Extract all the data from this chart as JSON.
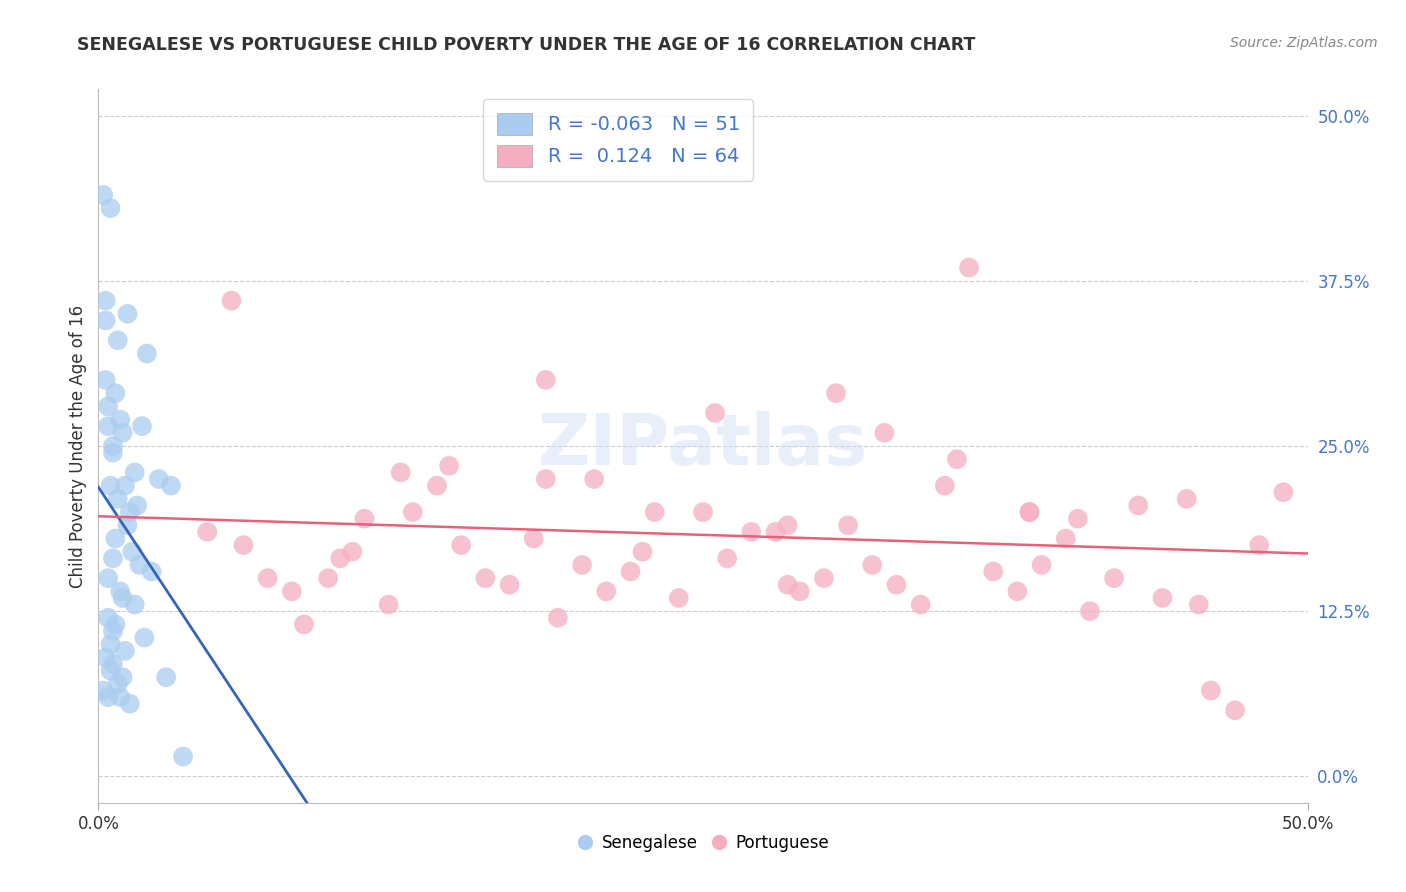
{
  "title": "SENEGALESE VS PORTUGUESE CHILD POVERTY UNDER THE AGE OF 16 CORRELATION CHART",
  "source": "Source: ZipAtlas.com",
  "ylabel": "Child Poverty Under the Age of 16",
  "ytick_vals": [
    0.0,
    12.5,
    25.0,
    37.5,
    50.0
  ],
  "ytick_labels": [
    "0.0%",
    "12.5%",
    "25.0%",
    "37.5%",
    "50.0%"
  ],
  "xlim": [
    0,
    50
  ],
  "ylim": [
    -2,
    52
  ],
  "legend_r_senegalese": "-0.063",
  "legend_n_senegalese": "51",
  "legend_r_portuguese": "0.124",
  "legend_n_portuguese": "64",
  "color_senegalese": "#aaccf0",
  "color_portuguese": "#f5aec0",
  "color_line_senegalese_solid": "#3366bb",
  "color_line_senegalese_dash": "#99bbdd",
  "color_line_portuguese": "#e8607a",
  "background": "#ffffff",
  "legend_text_color": "#4477cc",
  "tick_color": "#4477cc",
  "senegalese_x": [
    0.2,
    0.3,
    0.3,
    0.3,
    0.4,
    0.4,
    0.4,
    0.5,
    0.5,
    0.5,
    0.6,
    0.6,
    0.6,
    0.7,
    0.7,
    0.8,
    0.8,
    0.9,
    0.9,
    1.0,
    1.0,
    1.1,
    1.2,
    1.2,
    1.3,
    1.4,
    1.5,
    1.6,
    1.7,
    1.8,
    1.9,
    2.0,
    2.2,
    2.5,
    2.8,
    3.0,
    3.5,
    0.2,
    0.3,
    0.4,
    0.5,
    0.6,
    0.7,
    0.8,
    1.0,
    1.1,
    1.3,
    0.4,
    0.6,
    0.9,
    1.5
  ],
  "senegalese_y": [
    44.0,
    36.0,
    34.5,
    30.0,
    28.0,
    26.5,
    12.0,
    43.0,
    22.0,
    8.0,
    25.0,
    24.5,
    11.0,
    29.0,
    18.0,
    33.0,
    21.0,
    27.0,
    14.0,
    26.0,
    13.5,
    22.0,
    35.0,
    19.0,
    20.0,
    17.0,
    23.0,
    20.5,
    16.0,
    26.5,
    10.5,
    32.0,
    15.5,
    22.5,
    7.5,
    22.0,
    1.5,
    6.5,
    9.0,
    6.0,
    10.0,
    8.5,
    11.5,
    7.0,
    7.5,
    9.5,
    5.5,
    15.0,
    16.5,
    6.0,
    13.0
  ],
  "portuguese_x": [
    4.5,
    5.5,
    6.0,
    7.0,
    8.0,
    8.5,
    9.5,
    10.0,
    11.0,
    12.0,
    12.5,
    13.0,
    14.0,
    14.5,
    15.0,
    16.0,
    17.0,
    18.0,
    18.5,
    19.0,
    20.0,
    20.5,
    21.0,
    22.0,
    22.5,
    23.0,
    24.0,
    25.0,
    25.5,
    26.0,
    27.0,
    28.0,
    28.5,
    29.0,
    30.0,
    30.5,
    31.0,
    32.0,
    32.5,
    33.0,
    34.0,
    35.0,
    35.5,
    36.0,
    37.0,
    38.0,
    38.5,
    39.0,
    40.0,
    40.5,
    41.0,
    42.0,
    43.0,
    44.0,
    45.0,
    45.5,
    46.0,
    47.0,
    48.0,
    49.0,
    10.5,
    18.5,
    28.5,
    38.5
  ],
  "portuguese_y": [
    18.5,
    36.0,
    17.5,
    15.0,
    14.0,
    11.5,
    15.0,
    16.5,
    19.5,
    13.0,
    23.0,
    20.0,
    22.0,
    23.5,
    17.5,
    15.0,
    14.5,
    18.0,
    30.0,
    12.0,
    16.0,
    22.5,
    14.0,
    15.5,
    17.0,
    20.0,
    13.5,
    20.0,
    27.5,
    16.5,
    18.5,
    18.5,
    14.5,
    14.0,
    15.0,
    29.0,
    19.0,
    16.0,
    26.0,
    14.5,
    13.0,
    22.0,
    24.0,
    38.5,
    15.5,
    14.0,
    20.0,
    16.0,
    18.0,
    19.5,
    12.5,
    15.0,
    20.5,
    13.5,
    21.0,
    13.0,
    6.5,
    5.0,
    17.5,
    21.5,
    17.0,
    22.5,
    19.0,
    20.0
  ]
}
